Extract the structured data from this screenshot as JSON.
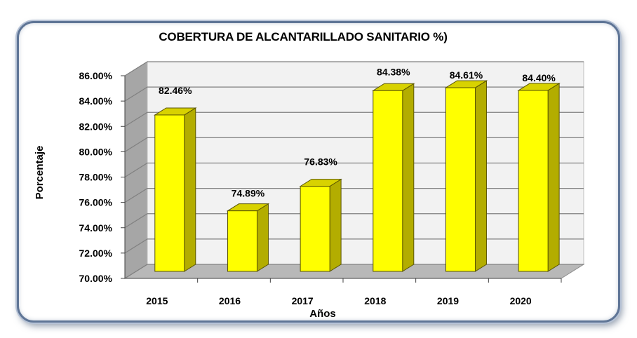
{
  "chart_data": {
    "type": "bar",
    "title": "COBERTURA DE ALCANTARILLADO SANITARIO %)",
    "xlabel": "Años",
    "ylabel": "Porcentaje",
    "categories": [
      "2015",
      "2016",
      "2017",
      "2018",
      "2019",
      "2020"
    ],
    "values": [
      82.46,
      74.89,
      76.83,
      84.38,
      84.61,
      84.4
    ],
    "data_labels": [
      "82.46%",
      "74.89%",
      "76.83%",
      "84.38%",
      "84.61%",
      "84.40%"
    ],
    "ylim": [
      70,
      86
    ],
    "yticks": [
      "70.00%",
      "72.00%",
      "74.00%",
      "76.00%",
      "78.00%",
      "80.00%",
      "82.00%",
      "84.00%",
      "86.00%"
    ],
    "grid": true,
    "legend": "none",
    "colors": {
      "bar_front": "#ffff00",
      "bar_side": "#b3ad00",
      "bar_top": "#d8d200",
      "back_wall": "#f2f2f2",
      "side_wall": "#a6a6a6",
      "floor": "#b8b8b8",
      "frame": "#5f7596"
    }
  }
}
